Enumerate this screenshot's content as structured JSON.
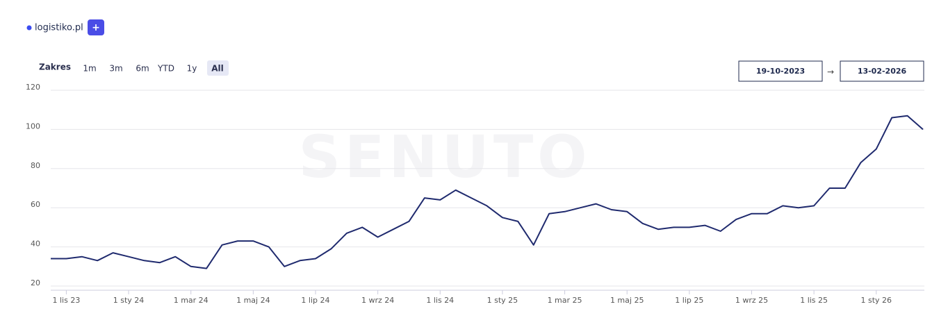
{
  "legend_add": "+",
  "range": {
    "label": "Zakres",
    "options": [
      "1m",
      "3m",
      "6m",
      "YTD",
      "1y",
      "All"
    ],
    "active": 5
  },
  "date_range": {
    "from": "19-10-2023",
    "separator": "→",
    "to": "13-02-2026"
  },
  "watermark": "SENUTO",
  "chart_data": {
    "type": "line",
    "categories": [
      null,
      "1 lis 23",
      null,
      null,
      null,
      "1 sty 24",
      null,
      null,
      null,
      "1 mar 24",
      null,
      null,
      null,
      "1 maj 24",
      null,
      null,
      null,
      "1 lip 24",
      null,
      null,
      null,
      "1 wrz 24",
      null,
      null,
      null,
      "1 lis 24",
      null,
      null,
      null,
      "1 sty 25",
      null,
      null,
      null,
      "1 mar 25",
      null,
      null,
      null,
      "1 maj 25",
      null,
      null,
      null,
      "1 lip 25",
      null,
      null,
      null,
      "1 wrz 25",
      null,
      null,
      null,
      "1 lis 25",
      null,
      null,
      null,
      "1 sty 26",
      null,
      null,
      null
    ],
    "series": [
      {
        "name": "logistiko.pl",
        "color": "#1f2a6e",
        "values": [
          34,
          34,
          35,
          33,
          37,
          35,
          33,
          32,
          35,
          30,
          29,
          41,
          43,
          43,
          40,
          30,
          33,
          34,
          39,
          47,
          50,
          45,
          49,
          53,
          65,
          64,
          69,
          65,
          61,
          55,
          53,
          41,
          57,
          58,
          60,
          62,
          59,
          58,
          52,
          49,
          50,
          50,
          51,
          48,
          54,
          57,
          57,
          61,
          60,
          61,
          70,
          70,
          83,
          90,
          106,
          107,
          100
        ]
      }
    ],
    "ylim": [
      20,
      120
    ],
    "yticks": [
      20,
      40,
      60,
      80,
      100,
      120
    ],
    "grid": true
  }
}
